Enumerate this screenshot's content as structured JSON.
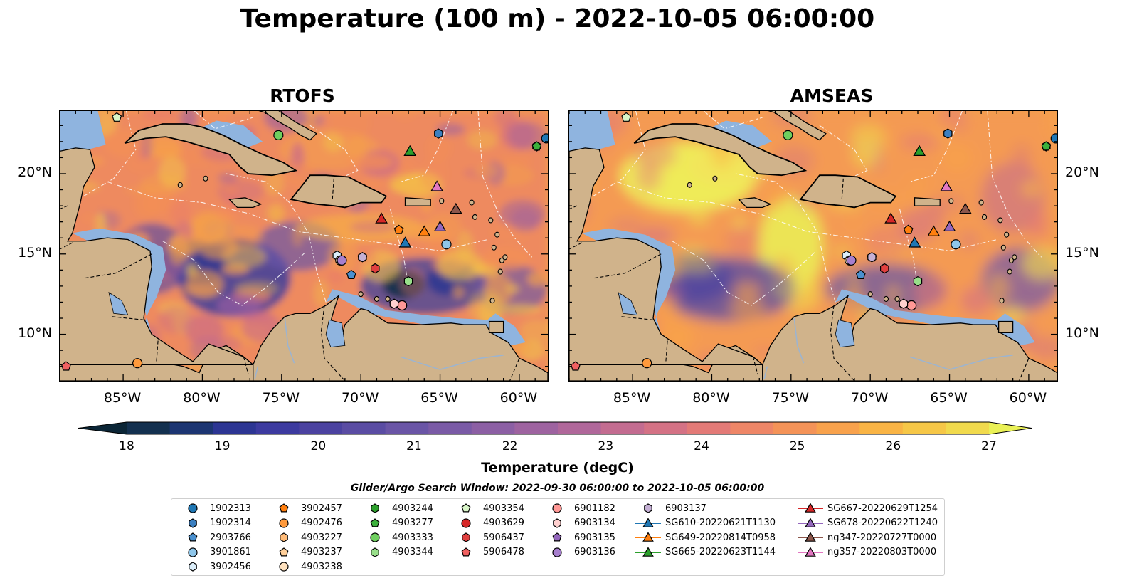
{
  "title": "Temperature (100 m) - 2022-10-05 06:00:00",
  "panels": [
    {
      "title": "RTOFS"
    },
    {
      "title": "AMSEAS"
    }
  ],
  "axes": {
    "lon_ticks": [
      "85°W",
      "80°W",
      "75°W",
      "70°W",
      "65°W",
      "60°W"
    ],
    "lon_values": [
      -85,
      -80,
      -75,
      -70,
      -65,
      -60
    ],
    "lat_ticks": [
      "20°N",
      "15°N",
      "10°N"
    ],
    "lat_values": [
      20,
      15,
      10
    ],
    "lon_range": [
      -89,
      -58.2
    ],
    "lat_range": [
      7.1,
      23.9
    ]
  },
  "colorbar": {
    "label": "Temperature (degC)",
    "ticks": [
      "18",
      "19",
      "20",
      "21",
      "22",
      "23",
      "24",
      "25",
      "26",
      "27"
    ],
    "min": 18,
    "max": 27,
    "extend": "both",
    "colors": [
      "#0b2536",
      "#13304f",
      "#1c3572",
      "#2c3593",
      "#3c3a9f",
      "#4b42a0",
      "#5a4ca3",
      "#6a55a6",
      "#7a5aa6",
      "#8c5fa4",
      "#9e63a0",
      "#b0679a",
      "#c36c90",
      "#d47285",
      "#e37a77",
      "#ee8667",
      "#f49358",
      "#f8a24c",
      "#f9b445",
      "#f6c747",
      "#f1da4d",
      "#eaf156"
    ]
  },
  "search_window": "Glider/Argo Search Window: 2022-09-30 06:00:00 to 2022-10-05 06:00:00",
  "legend": [
    {
      "label": "1902313",
      "marker": "circle",
      "color": "#1f77b4"
    },
    {
      "label": "1902314",
      "marker": "hexagon",
      "color": "#3b7fc0"
    },
    {
      "label": "2903766",
      "marker": "pentagon",
      "color": "#4a90cf"
    },
    {
      "label": "3901861",
      "marker": "circle",
      "color": "#8ec6ea"
    },
    {
      "label": "3902456",
      "marker": "hexagon",
      "color": "#dbeefa"
    },
    {
      "label": "3902457",
      "marker": "pentagon",
      "color": "#ff7f0e"
    },
    {
      "label": "4902476",
      "marker": "circle",
      "color": "#ff9a3c"
    },
    {
      "label": "4903227",
      "marker": "hexagon",
      "color": "#ffbb78"
    },
    {
      "label": "4903237",
      "marker": "pentagon",
      "color": "#ffcf99"
    },
    {
      "label": "4903238",
      "marker": "circle",
      "color": "#ffe2bf"
    },
    {
      "label": "4903244",
      "marker": "hexagon",
      "color": "#2ca02c"
    },
    {
      "label": "4903277",
      "marker": "pentagon",
      "color": "#3cb13c"
    },
    {
      "label": "4903333",
      "marker": "circle",
      "color": "#6fcf5f"
    },
    {
      "label": "4903344",
      "marker": "hexagon",
      "color": "#98df8a"
    },
    {
      "label": "4903354",
      "marker": "pentagon",
      "color": "#d8f5c8"
    },
    {
      "label": "4903629",
      "marker": "circle",
      "color": "#d62728"
    },
    {
      "label": "5906437",
      "marker": "hexagon",
      "color": "#e0403f"
    },
    {
      "label": "5906478",
      "marker": "pentagon",
      "color": "#f06060"
    },
    {
      "label": "6901182",
      "marker": "circle",
      "color": "#ff9896"
    },
    {
      "label": "6903134",
      "marker": "hexagon",
      "color": "#ffd0cf"
    },
    {
      "label": "6903135",
      "marker": "pentagon",
      "color": "#9467bd"
    },
    {
      "label": "6903136",
      "marker": "circle",
      "color": "#a77fce"
    },
    {
      "label": "6903137",
      "marker": "hexagon",
      "color": "#c5b0d5"
    },
    {
      "label": "SG610-20220621T1130",
      "marker": "triangle",
      "color": "#1f77b4"
    },
    {
      "label": "SG649-20220814T0958",
      "marker": "triangle",
      "color": "#ff7f0e"
    },
    {
      "label": "SG665-20220623T1144",
      "marker": "triangle",
      "color": "#2ca02c"
    },
    {
      "label": "SG667-20220629T1254",
      "marker": "triangle",
      "color": "#d62728"
    },
    {
      "label": "SG678-20220622T1240",
      "marker": "triangle",
      "color": "#9467bd"
    },
    {
      "label": "ng347-20220727T0000",
      "marker": "triangle",
      "color": "#8c564b"
    },
    {
      "label": "ng357-20220803T0000",
      "marker": "triangle",
      "color": "#e377c2"
    }
  ],
  "map_markers": [
    {
      "id": "1902313",
      "lon": -58.3,
      "lat": 22.2
    },
    {
      "id": "1902314",
      "lon": -65.1,
      "lat": 22.5
    },
    {
      "id": "2903766",
      "lon": -70.6,
      "lat": 13.7
    },
    {
      "id": "3901861",
      "lon": -64.6,
      "lat": 15.6
    },
    {
      "id": "3902456",
      "lon": -71.5,
      "lat": 14.9
    },
    {
      "id": "3902457",
      "lon": -67.6,
      "lat": 16.5
    },
    {
      "id": "4902476",
      "lon": -84.1,
      "lat": 8.2
    },
    {
      "id": "4903227",
      "lon": -69.1,
      "lat": 14.1
    },
    {
      "id": "4903237",
      "lon": -67.9,
      "lat": 11.9
    },
    {
      "id": "4903238",
      "lon": -71.3,
      "lat": 14.6
    },
    {
      "id": "4903244",
      "lon": -58.9,
      "lat": 21.7
    },
    {
      "id": "4903277",
      "lon": -58.9,
      "lat": 21.7
    },
    {
      "id": "4903333",
      "lon": -75.2,
      "lat": 22.4
    },
    {
      "id": "4903344",
      "lon": -67.0,
      "lat": 13.3
    },
    {
      "id": "4903354",
      "lon": -85.4,
      "lat": 23.5
    },
    {
      "id": "4903629",
      "lon": -67.4,
      "lat": 11.8
    },
    {
      "id": "5906437",
      "lon": -69.1,
      "lat": 14.1
    },
    {
      "id": "5906478",
      "lon": -88.6,
      "lat": 8.0
    },
    {
      "id": "6901182",
      "lon": -67.4,
      "lat": 11.8
    },
    {
      "id": "6903134",
      "lon": -67.9,
      "lat": 11.9
    },
    {
      "id": "6903135",
      "lon": -69.9,
      "lat": 14.8
    },
    {
      "id": "6903136",
      "lon": -71.2,
      "lat": 14.6
    },
    {
      "id": "6903137",
      "lon": -69.9,
      "lat": 14.8
    },
    {
      "id": "SG610-20220621T1130",
      "lon": -67.2,
      "lat": 15.7
    },
    {
      "id": "SG649-20220814T0958",
      "lon": -66.0,
      "lat": 16.4
    },
    {
      "id": "SG665-20220623T1144",
      "lon": -66.9,
      "lat": 21.4
    },
    {
      "id": "SG667-20220629T1254",
      "lon": -68.7,
      "lat": 17.2
    },
    {
      "id": "SG678-20220622T1240",
      "lon": -65.0,
      "lat": 16.7
    },
    {
      "id": "ng347-20220727T0000",
      "lon": -64.0,
      "lat": 17.8
    },
    {
      "id": "ng357-20220803T0000",
      "lon": -65.2,
      "lat": 19.2
    }
  ]
}
